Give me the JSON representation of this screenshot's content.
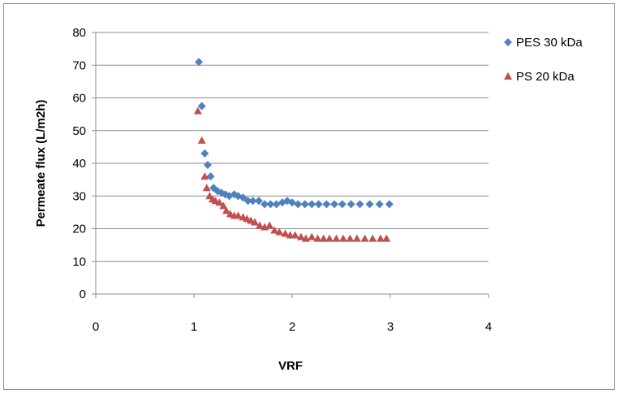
{
  "chart_data": {
    "type": "scatter",
    "xlabel": "VRF",
    "ylabel": "Permeate flux (L/m2h)",
    "xlim": [
      0,
      4
    ],
    "ylim": [
      0,
      80
    ],
    "x_ticks": [
      "0",
      "1",
      "2",
      "3",
      "4"
    ],
    "y_ticks": [
      "0",
      "10",
      "20",
      "30",
      "40",
      "50",
      "60",
      "70",
      "80"
    ],
    "grid": "horizontal",
    "legend_position": "top-right",
    "series": [
      {
        "name": "PES 30 kDa",
        "marker": "diamond",
        "color": "#4F81BD",
        "points": [
          [
            1.05,
            71.0
          ],
          [
            1.08,
            57.5
          ],
          [
            1.11,
            43.0
          ],
          [
            1.14,
            39.5
          ],
          [
            1.17,
            36.0
          ],
          [
            1.2,
            32.5
          ],
          [
            1.24,
            31.5
          ],
          [
            1.28,
            31.0
          ],
          [
            1.32,
            30.5
          ],
          [
            1.36,
            30.0
          ],
          [
            1.41,
            30.5
          ],
          [
            1.45,
            30.0
          ],
          [
            1.5,
            29.5
          ],
          [
            1.55,
            28.5
          ],
          [
            1.6,
            28.5
          ],
          [
            1.66,
            28.5
          ],
          [
            1.72,
            27.5
          ],
          [
            1.78,
            27.5
          ],
          [
            1.84,
            27.5
          ],
          [
            1.9,
            28.0
          ],
          [
            1.95,
            28.5
          ],
          [
            2.0,
            28.0
          ],
          [
            2.06,
            27.5
          ],
          [
            2.13,
            27.5
          ],
          [
            2.2,
            27.5
          ],
          [
            2.27,
            27.5
          ],
          [
            2.35,
            27.5
          ],
          [
            2.43,
            27.5
          ],
          [
            2.51,
            27.5
          ],
          [
            2.6,
            27.5
          ],
          [
            2.69,
            27.5
          ],
          [
            2.79,
            27.5
          ],
          [
            2.89,
            27.5
          ],
          [
            2.99,
            27.5
          ]
        ]
      },
      {
        "name": "PS 20 kDa",
        "marker": "triangle",
        "color": "#C0504D",
        "points": [
          [
            1.04,
            56.0
          ],
          [
            1.08,
            47.0
          ],
          [
            1.11,
            36.0
          ],
          [
            1.13,
            32.5
          ],
          [
            1.16,
            30.0
          ],
          [
            1.19,
            29.0
          ],
          [
            1.22,
            28.5
          ],
          [
            1.26,
            28.0
          ],
          [
            1.3,
            27.0
          ],
          [
            1.33,
            25.5
          ],
          [
            1.37,
            24.5
          ],
          [
            1.41,
            24.0
          ],
          [
            1.45,
            24.0
          ],
          [
            1.5,
            23.5
          ],
          [
            1.54,
            23.0
          ],
          [
            1.58,
            22.5
          ],
          [
            1.62,
            22.0
          ],
          [
            1.67,
            21.0
          ],
          [
            1.72,
            20.5
          ],
          [
            1.77,
            21.0
          ],
          [
            1.82,
            19.5
          ],
          [
            1.87,
            19.0
          ],
          [
            1.93,
            18.5
          ],
          [
            1.98,
            18.0
          ],
          [
            2.03,
            18.0
          ],
          [
            2.09,
            17.5
          ],
          [
            2.14,
            17.0
          ],
          [
            2.2,
            17.5
          ],
          [
            2.26,
            17.0
          ],
          [
            2.32,
            17.0
          ],
          [
            2.38,
            17.0
          ],
          [
            2.45,
            17.0
          ],
          [
            2.52,
            17.0
          ],
          [
            2.59,
            17.0
          ],
          [
            2.66,
            17.0
          ],
          [
            2.74,
            17.0
          ],
          [
            2.82,
            17.0
          ],
          [
            2.9,
            17.0
          ],
          [
            2.96,
            17.0
          ]
        ]
      }
    ]
  }
}
